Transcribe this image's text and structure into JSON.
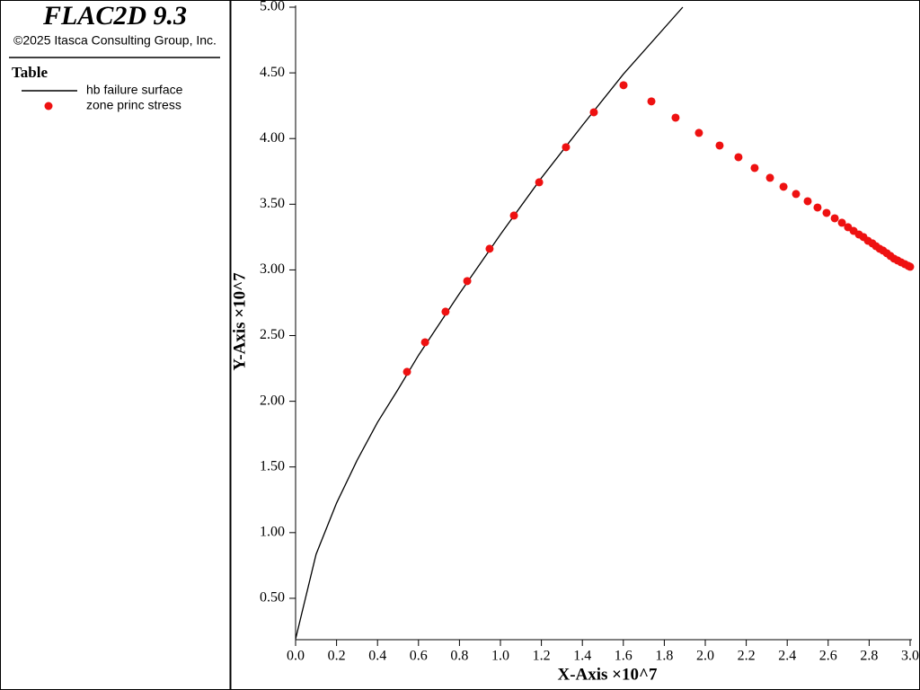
{
  "chart_data": {
    "type": "line",
    "title": "FLAC2D 9.3",
    "subtitle": "©2025 Itasca Consulting Group, Inc.",
    "legend_title": "Table",
    "x_label": "X-Axis ×10^7",
    "y_label": "Y-Axis ×10^7",
    "xlim": [
      0,
      3.0
    ],
    "ylim": [
      0.185,
      5.0
    ],
    "xticks": [
      {
        "value": 0,
        "label": "0.0"
      },
      0.2,
      0.4,
      0.6,
      0.8,
      {
        "value": 1,
        "label": "1.0"
      },
      1.2,
      1.4,
      1.6,
      1.8,
      {
        "value": 2,
        "label": "2.0"
      },
      2.2,
      2.4,
      2.6,
      2.8,
      {
        "value": 3,
        "label": "3.0"
      }
    ],
    "yticks": [
      {
        "value": 0.5,
        "label": "0.50"
      },
      {
        "value": 1,
        "label": "1.00"
      },
      {
        "value": 1.5,
        "label": "1.50"
      },
      {
        "value": 2,
        "label": "2.00"
      },
      {
        "value": 2.5,
        "label": "2.50"
      },
      {
        "value": 3,
        "label": "3.00"
      },
      {
        "value": 3.5,
        "label": "3.50"
      },
      {
        "value": 4,
        "label": "4.00"
      },
      {
        "value": 4.5,
        "label": "4.50"
      },
      {
        "value": 5,
        "label": "5.00"
      }
    ],
    "series": [
      {
        "name": "hb failure surface",
        "type": "line",
        "color": "#000000",
        "x": [
          0,
          0.1,
          0.2,
          0.3,
          0.4,
          0.5,
          0.6,
          0.8,
          1.0,
          1.2,
          1.4,
          1.6,
          1.89
        ],
        "values": [
          0.19,
          0.835,
          1.225,
          1.55,
          1.84,
          2.09,
          2.35,
          2.82,
          3.27,
          3.7,
          4.1,
          4.49,
          5.0
        ]
      },
      {
        "name": "zone princ stress",
        "type": "scatter",
        "color": "#ee1111",
        "x": [
          0.544,
          0.632,
          0.732,
          0.838,
          0.947,
          1.066,
          1.189,
          1.32,
          1.456,
          1.601,
          1.737,
          1.855,
          1.969,
          2.07,
          2.162,
          2.241,
          2.316,
          2.382,
          2.443,
          2.5,
          2.548,
          2.592,
          2.632,
          2.667,
          2.697,
          2.724,
          2.75,
          2.772,
          2.794,
          2.816,
          2.833,
          2.851,
          2.868,
          2.886,
          2.904,
          2.921,
          2.939,
          2.956,
          2.974,
          2.991,
          3.0
        ],
        "values": [
          2.224,
          2.449,
          2.682,
          2.915,
          3.161,
          3.414,
          3.667,
          3.934,
          4.2,
          4.406,
          4.283,
          4.159,
          4.043,
          3.947,
          3.858,
          3.776,
          3.701,
          3.633,
          3.578,
          3.523,
          3.475,
          3.434,
          3.393,
          3.359,
          3.325,
          3.297,
          3.27,
          3.25,
          3.222,
          3.202,
          3.181,
          3.161,
          3.147,
          3.127,
          3.106,
          3.086,
          3.072,
          3.058,
          3.044,
          3.031,
          3.024
        ]
      }
    ]
  }
}
